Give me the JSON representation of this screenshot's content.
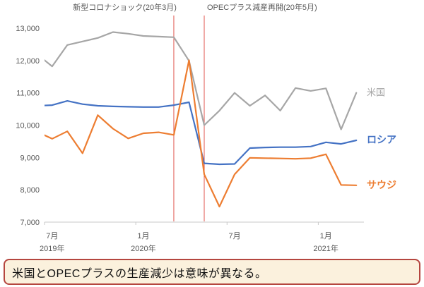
{
  "chart_data": {
    "type": "line",
    "title": "",
    "x_months": [
      "2019-06",
      "2019-07",
      "2019-08",
      "2019-09",
      "2019-10",
      "2019-11",
      "2019-12",
      "2020-01",
      "2020-02",
      "2020-03",
      "2020-04",
      "2020-05",
      "2020-06",
      "2020-07",
      "2020-08",
      "2020-09",
      "2020-10",
      "2020-11",
      "2020-12",
      "2021-01",
      "2021-02",
      "2021-03"
    ],
    "y_axis": {
      "min": 7000,
      "max": 13000,
      "step": 1000
    },
    "x_axis": {
      "ticks": [
        {
          "month_label": "7月",
          "year_label": "2019年",
          "month_index": 1
        },
        {
          "month_label": "1月",
          "year_label": "2020年",
          "month_index": 7
        },
        {
          "month_label": "7月",
          "year_label": "",
          "month_index": 13
        },
        {
          "month_label": "1月",
          "year_label": "2021年",
          "month_index": 19
        }
      ]
    },
    "series": [
      {
        "name": "米国",
        "color": "#a6a6a6",
        "bold_label": false,
        "values": [
          12200,
          11820,
          12480,
          12590,
          12700,
          12880,
          12830,
          12760,
          12740,
          12720,
          11990,
          10000,
          10450,
          11000,
          10600,
          10920,
          10450,
          11150,
          11060,
          11140,
          9870,
          11000
        ]
      },
      {
        "name": "ロシア",
        "color": "#4472c4",
        "bold_label": true,
        "values": [
          10600,
          10620,
          10750,
          10650,
          10600,
          10580,
          10570,
          10560,
          10560,
          10620,
          10710,
          8820,
          8790,
          8800,
          9290,
          9310,
          9320,
          9320,
          9340,
          9470,
          9420,
          9530
        ]
      },
      {
        "name": "サウジ",
        "color": "#ed7d31",
        "bold_label": true,
        "values": [
          9800,
          9580,
          9810,
          9130,
          10310,
          9890,
          9590,
          9750,
          9780,
          9700,
          12010,
          8480,
          7480,
          8480,
          8990,
          8980,
          8970,
          8960,
          8980,
          9100,
          8150,
          8140
        ]
      }
    ],
    "events": [
      {
        "label": "新型コロナショック(20年3月)",
        "month": "2020-03",
        "month_index": 9
      },
      {
        "label": "OPECプラス減産再開(20年5月)",
        "month": "2020-05",
        "month_index": 11
      }
    ],
    "event_line_color": "#e0564f",
    "axis_color": "#c9c9c9",
    "grid": false,
    "legend_position": "right-inline"
  },
  "caption": {
    "text": "米国とOPECプラスの生産減少は意味が異なる。",
    "border_color": "#b5463f",
    "background": "#fbf1dd"
  }
}
